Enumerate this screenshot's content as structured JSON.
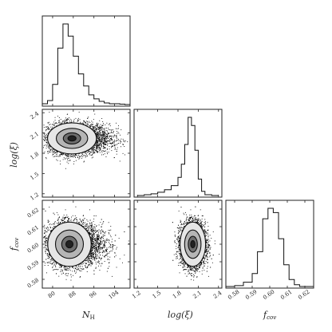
{
  "chart_data": [
    {
      "type": "histogram",
      "panel": "N_H",
      "bins_x": [
        76,
        78,
        80,
        82,
        84,
        86,
        88,
        90,
        92,
        94,
        96,
        98,
        100,
        102,
        104,
        106,
        108,
        110
      ],
      "counts": [
        0.01,
        0.05,
        0.25,
        0.7,
        1.0,
        0.85,
        0.6,
        0.38,
        0.23,
        0.12,
        0.07,
        0.04,
        0.02,
        0.01,
        0.01,
        0.005,
        0.0
      ]
    },
    {
      "type": "scatter",
      "panel": "N_H vs log(xi)",
      "center": [
        87.5,
        2.02
      ],
      "spread": [
        4.5,
        0.11
      ]
    },
    {
      "type": "histogram",
      "panel": "log(xi)",
      "bins_x": [
        1.2,
        1.3,
        1.4,
        1.5,
        1.6,
        1.7,
        1.8,
        1.85,
        1.9,
        1.95,
        2.0,
        2.05,
        2.1,
        2.15,
        2.2,
        2.3,
        2.4
      ],
      "counts": [
        0.0,
        0.01,
        0.02,
        0.04,
        0.07,
        0.12,
        0.22,
        0.38,
        0.62,
        0.95,
        0.85,
        0.55,
        0.2,
        0.05,
        0.01,
        0.0
      ]
    },
    {
      "type": "scatter",
      "panel": "N_H vs f_cov",
      "center": [
        86.5,
        0.6
      ],
      "spread": [
        4.0,
        0.006
      ]
    },
    {
      "type": "scatter",
      "panel": "log(xi) vs f_cov",
      "center": [
        2.02,
        0.6
      ],
      "spread": [
        0.09,
        0.006
      ]
    },
    {
      "type": "histogram",
      "panel": "f_cov",
      "bins_x": [
        0.575,
        0.58,
        0.585,
        0.59,
        0.593,
        0.596,
        0.599,
        0.602,
        0.605,
        0.608,
        0.611,
        0.614,
        0.617,
        0.62,
        0.625
      ],
      "counts": [
        0.0,
        0.01,
        0.05,
        0.15,
        0.4,
        0.78,
        0.9,
        0.85,
        0.55,
        0.25,
        0.08,
        0.02,
        0.0,
        0.0
      ]
    }
  ],
  "axes": {
    "nh": {
      "label_main": "N",
      "label_sub": "H",
      "ticks": [
        "80",
        "88",
        "96",
        "104"
      ],
      "range": [
        76,
        110
      ]
    },
    "xi": {
      "label": "log(ξ)",
      "ticks": [
        "1.2",
        "1.5",
        "1.8",
        "2.1",
        "2.4"
      ],
      "range": [
        1.15,
        2.45
      ]
    },
    "fcov": {
      "label_main": "f",
      "label_sub": "cov",
      "ticks_x": [
        "0.58",
        "0.59",
        "0.60",
        "0.61",
        "0.62"
      ],
      "ticks_y": [
        "0.58",
        "0.59",
        "0.60",
        "0.61",
        "0.62"
      ],
      "range": [
        0.575,
        0.625
      ]
    }
  },
  "colors": {
    "points": "#000000",
    "contour_fill_outer": "#e6e6e6",
    "contour_fill_mid": "#b5b5b5",
    "contour_fill_inner": "#6e6e6e",
    "contour_core": "#222222"
  }
}
